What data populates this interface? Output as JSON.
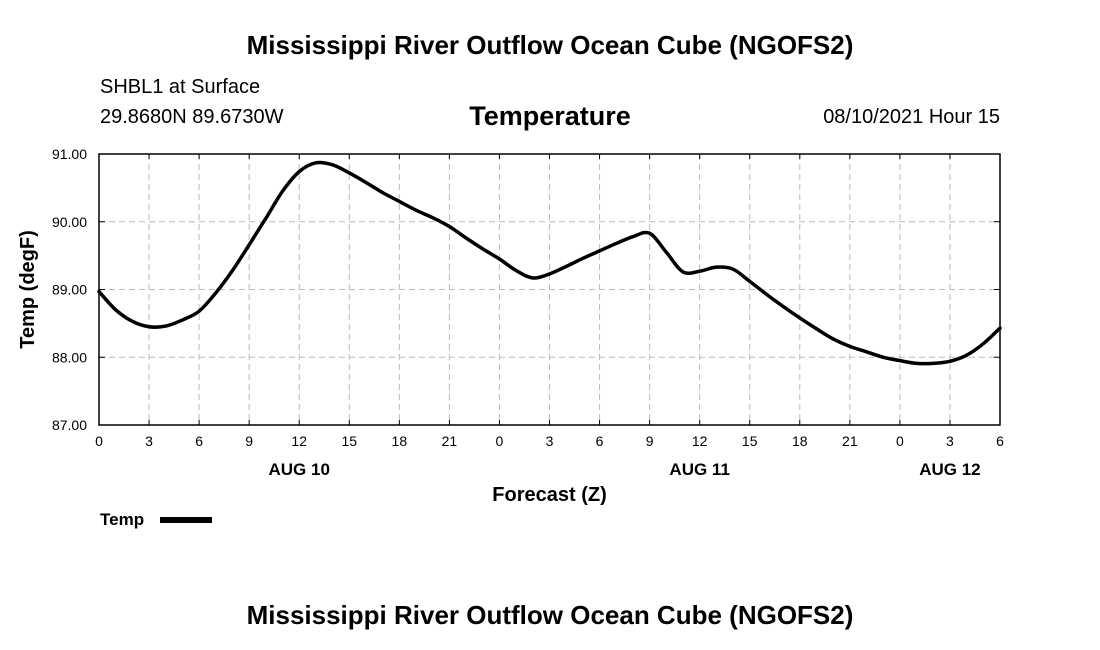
{
  "header": {
    "title": "Mississippi River Outflow Ocean Cube (NGOFS2)",
    "station": "SHBL1 at Surface",
    "coordinates": "29.8680N  89.6730W",
    "variable": "Temperature",
    "datetime": "08/10/2021 Hour 15"
  },
  "footer": {
    "title": "Mississippi River Outflow Ocean Cube (NGOFS2)"
  },
  "chart_data": {
    "type": "line",
    "title": "Temperature",
    "xlabel": "Forecast (Z)",
    "ylabel": "Temp (degF)",
    "xlim": [
      0,
      54
    ],
    "ylim": [
      87.0,
      91.0
    ],
    "grid": true,
    "x_ticks": [
      0,
      3,
      6,
      9,
      12,
      15,
      18,
      21,
      24,
      27,
      30,
      33,
      36,
      39,
      42,
      45,
      48,
      51,
      54
    ],
    "x_tick_labels": [
      "0",
      "3",
      "6",
      "9",
      "12",
      "15",
      "18",
      "21",
      "0",
      "3",
      "6",
      "9",
      "12",
      "15",
      "18",
      "21",
      "0",
      "3",
      "6"
    ],
    "y_ticks": [
      87.0,
      88.0,
      89.0,
      90.0,
      91.0
    ],
    "y_tick_labels": [
      "87.00",
      "88.00",
      "89.00",
      "90.00",
      "91.00"
    ],
    "day_labels": [
      {
        "x": 12,
        "label": "AUG 10"
      },
      {
        "x": 36,
        "label": "AUG 11"
      },
      {
        "x": 51,
        "label": "AUG 12"
      }
    ],
    "legend": {
      "position": "bottom-left",
      "entries": [
        "Temp"
      ]
    },
    "series": [
      {
        "name": "Temp",
        "color": "#000000",
        "x": [
          0,
          1,
          2,
          3,
          4,
          5,
          6,
          7,
          8,
          9,
          10,
          11,
          12,
          13,
          14,
          15,
          16,
          17,
          18,
          19,
          20,
          21,
          22,
          23,
          24,
          25,
          26,
          27,
          28,
          29,
          30,
          31,
          32,
          33,
          34,
          35,
          36,
          37,
          38,
          39,
          40,
          41,
          42,
          43,
          44,
          45,
          46,
          47,
          48,
          49,
          50,
          51,
          52,
          53,
          54
        ],
        "values": [
          88.97,
          88.7,
          88.53,
          88.45,
          88.46,
          88.55,
          88.68,
          88.95,
          89.28,
          89.66,
          90.05,
          90.45,
          90.74,
          90.87,
          90.84,
          90.72,
          90.58,
          90.43,
          90.3,
          90.17,
          90.06,
          89.93,
          89.76,
          89.6,
          89.45,
          89.28,
          89.17,
          89.23,
          89.34,
          89.46,
          89.57,
          89.68,
          89.78,
          89.83,
          89.55,
          89.26,
          89.27,
          89.33,
          89.3,
          89.12,
          88.93,
          88.75,
          88.58,
          88.42,
          88.27,
          88.16,
          88.08,
          88.0,
          87.95,
          87.91,
          87.91,
          87.94,
          88.03,
          88.2,
          88.43
        ]
      }
    ]
  }
}
